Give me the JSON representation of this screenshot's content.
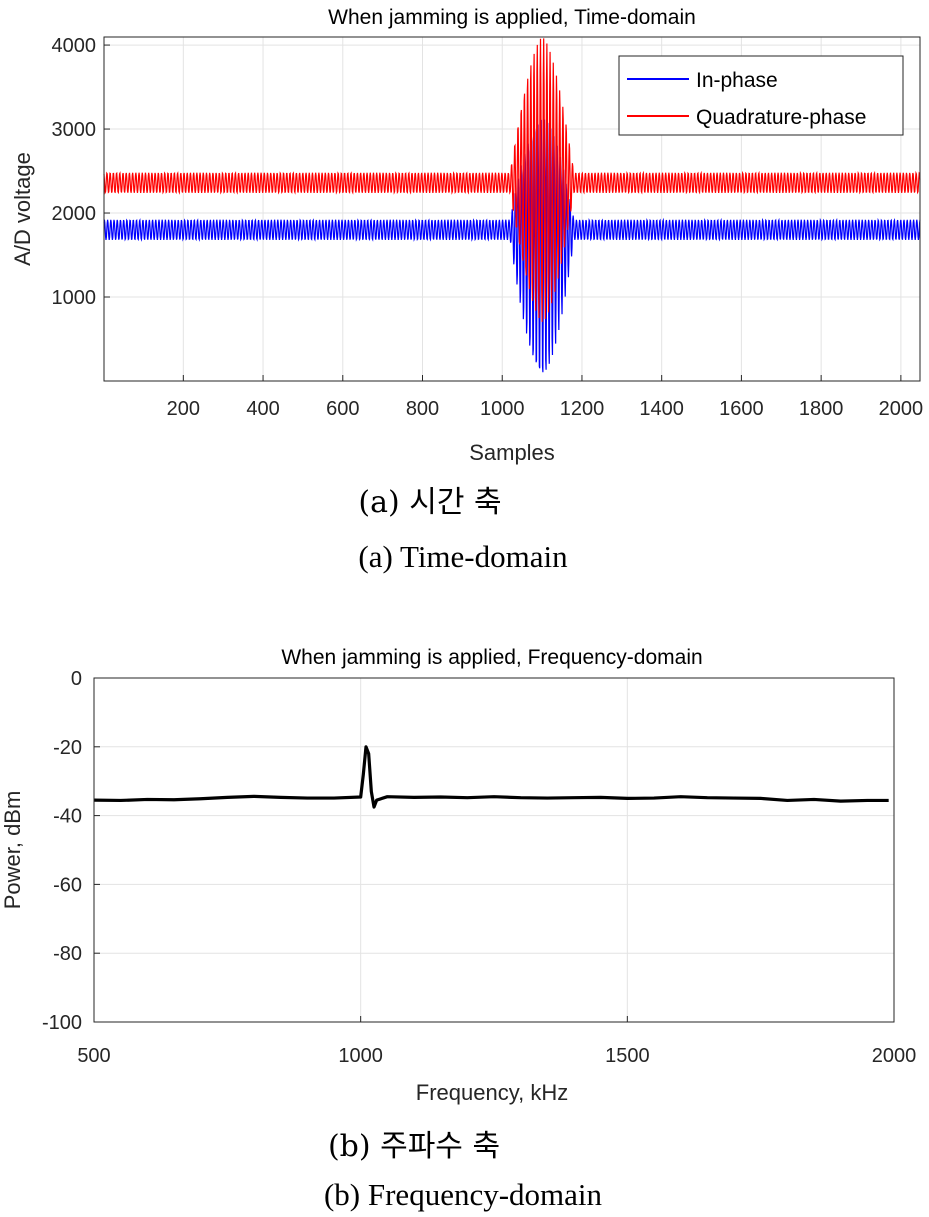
{
  "chart_data": [
    {
      "type": "line",
      "title": "When jamming is applied, Time-domain",
      "xlabel": "Samples",
      "ylabel": "A/D voltage",
      "xlim": [
        1,
        2048
      ],
      "ylim": [
        0,
        4096
      ],
      "xticks": [
        200,
        400,
        600,
        800,
        1000,
        1200,
        1400,
        1600,
        1800,
        2000
      ],
      "yticks": [
        1000,
        2000,
        3000,
        4000
      ],
      "grid": true,
      "legend_position": "top-right",
      "caption_ko": "(a)  시간 축",
      "caption_en": "(a)  Time-domain",
      "series": [
        {
          "name": "In-phase",
          "color": "#0000ff",
          "baseline": 1800,
          "ripple_amplitude": 120,
          "burst_range": [
            1020,
            1180
          ],
          "burst_min": 0,
          "burst_max": 3200
        },
        {
          "name": "Quadrature-phase",
          "color": "#ff0000",
          "baseline": 2360,
          "ripple_amplitude": 120,
          "burst_range": [
            1020,
            1180
          ],
          "burst_min": 700,
          "burst_max": 4096
        }
      ]
    },
    {
      "type": "line",
      "title": "When jamming is applied, Frequency-domain",
      "xlabel": "Frequency, kHz",
      "ylabel": "Power, dBm",
      "xlim": [
        500,
        2000
      ],
      "ylim": [
        -100,
        0
      ],
      "xticks": [
        500,
        1000,
        1500,
        2000
      ],
      "yticks": [
        0,
        -20,
        -40,
        -60,
        -80,
        -100
      ],
      "grid": true,
      "caption_ko": "(b)  주파수 축",
      "caption_en": "(b)  Frequency-domain",
      "series": [
        {
          "color": "#000000",
          "x": [
            500,
            550,
            600,
            650,
            700,
            750,
            800,
            850,
            900,
            950,
            1000,
            1005,
            1010,
            1015,
            1020,
            1025,
            1030,
            1050,
            1100,
            1150,
            1200,
            1250,
            1300,
            1350,
            1400,
            1450,
            1500,
            1550,
            1600,
            1650,
            1700,
            1750,
            1800,
            1850,
            1900,
            1950,
            1990
          ],
          "y": [
            -35.5,
            -35.6,
            -35.3,
            -35.4,
            -35.1,
            -34.7,
            -34.4,
            -34.7,
            -34.9,
            -34.9,
            -34.6,
            -28,
            -20,
            -22,
            -33,
            -37.5,
            -35.5,
            -34.5,
            -34.7,
            -34.6,
            -34.8,
            -34.5,
            -34.8,
            -34.9,
            -34.8,
            -34.7,
            -35.0,
            -34.9,
            -34.5,
            -34.8,
            -34.9,
            -35.0,
            -35.6,
            -35.3,
            -35.8,
            -35.6,
            -35.6
          ]
        }
      ]
    }
  ]
}
